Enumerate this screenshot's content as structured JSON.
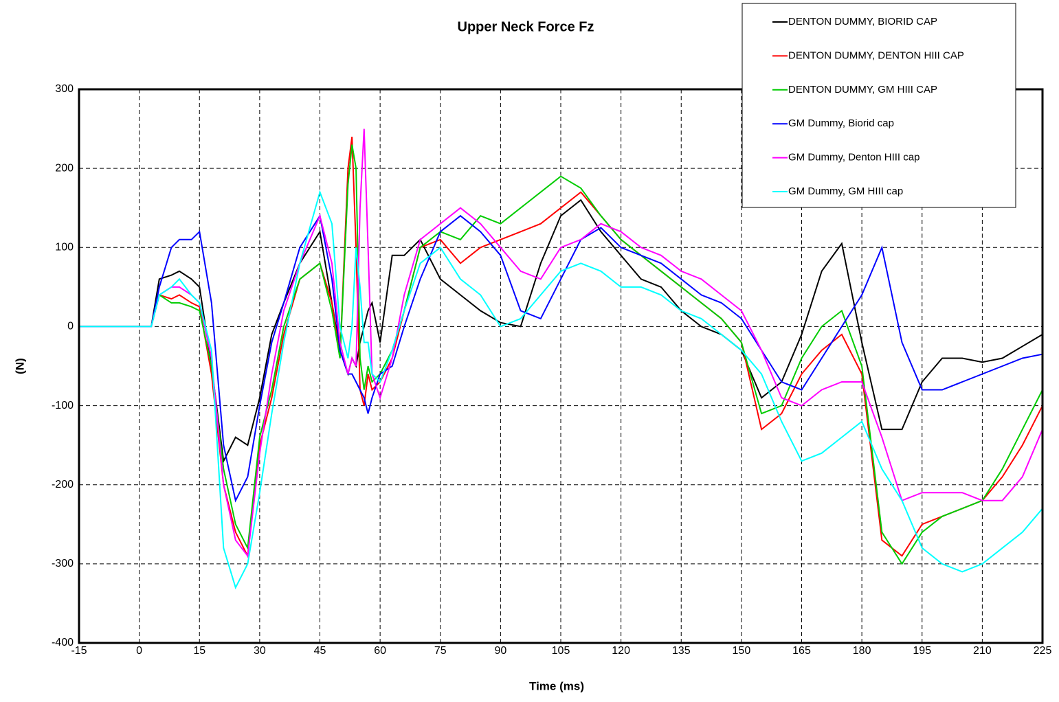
{
  "chart_data": {
    "type": "line",
    "title": "Upper Neck Force Fz",
    "x_label": "Time (ms)",
    "y_label": "(N)",
    "x": [
      -15,
      0,
      3,
      5,
      8,
      10,
      13,
      15,
      18,
      21,
      24,
      27,
      30,
      33,
      36,
      40,
      45,
      48,
      50,
      52,
      53,
      54,
      55,
      56,
      57,
      58,
      60,
      63,
      66,
      70,
      75,
      80,
      85,
      90,
      95,
      100,
      105,
      110,
      115,
      120,
      125,
      130,
      135,
      140,
      145,
      150,
      155,
      160,
      165,
      170,
      175,
      180,
      185,
      190,
      195,
      200,
      205,
      210,
      215,
      220,
      225
    ],
    "series": [
      {
        "name": "DENTON DUMMY, BIORID CAP",
        "color": "#000000",
        "values": [
          0,
          0,
          0,
          60,
          65,
          70,
          60,
          50,
          -50,
          -170,
          -140,
          -150,
          -90,
          -10,
          30,
          80,
          120,
          30,
          -30,
          -60,
          -40,
          -50,
          -20,
          0,
          20,
          30,
          -20,
          90,
          90,
          110,
          60,
          40,
          20,
          5,
          0,
          80,
          140,
          160,
          120,
          90,
          60,
          50,
          20,
          0,
          -10,
          -30,
          -90,
          -70,
          -10,
          70,
          105,
          -20,
          -130,
          -130,
          -70,
          -40,
          -40,
          -45,
          -40,
          -25,
          -10
        ]
      },
      {
        "name": "DENTON DUMMY, DENTON HIII CAP",
        "color": "#ff0000",
        "values": [
          0,
          0,
          0,
          40,
          35,
          40,
          30,
          25,
          -60,
          -200,
          -260,
          -290,
          -150,
          -90,
          -10,
          60,
          80,
          30,
          -40,
          200,
          240,
          100,
          -80,
          -100,
          -60,
          -80,
          -70,
          -40,
          20,
          100,
          110,
          80,
          100,
          110,
          120,
          130,
          150,
          170,
          140,
          110,
          90,
          70,
          50,
          30,
          10,
          -20,
          -130,
          -110,
          -60,
          -30,
          -10,
          -60,
          -270,
          -290,
          -250,
          -240,
          -230,
          -220,
          -190,
          -150,
          -100
        ]
      },
      {
        "name": "DENTON DUMMY, GM HIII CAP",
        "color": "#00cc00",
        "values": [
          0,
          0,
          0,
          40,
          30,
          30,
          25,
          20,
          -50,
          -180,
          -250,
          -280,
          -140,
          -80,
          0,
          60,
          80,
          20,
          -40,
          180,
          230,
          200,
          -40,
          -80,
          -50,
          -70,
          -60,
          -30,
          20,
          100,
          120,
          110,
          140,
          130,
          150,
          170,
          190,
          175,
          140,
          110,
          90,
          70,
          50,
          30,
          10,
          -20,
          -110,
          -100,
          -40,
          0,
          20,
          -50,
          -260,
          -300,
          -260,
          -240,
          -230,
          -220,
          -180,
          -130,
          -80
        ]
      },
      {
        "name": "GM Dummy, Biorid cap",
        "color": "#0000ff",
        "values": [
          0,
          0,
          0,
          50,
          100,
          110,
          110,
          120,
          30,
          -150,
          -220,
          -190,
          -100,
          -20,
          30,
          100,
          140,
          60,
          -30,
          -60,
          -60,
          -70,
          -80,
          -90,
          -110,
          -90,
          -60,
          -50,
          0,
          60,
          120,
          140,
          120,
          90,
          20,
          10,
          60,
          110,
          125,
          100,
          90,
          80,
          60,
          40,
          30,
          10,
          -30,
          -70,
          -80,
          -40,
          0,
          40,
          100,
          -20,
          -80,
          -80,
          -70,
          -60,
          -50,
          -40,
          -35
        ]
      },
      {
        "name": "GM Dummy, Denton HIII cap",
        "color": "#ff00ff",
        "values": [
          0,
          0,
          0,
          40,
          50,
          50,
          40,
          30,
          -40,
          -200,
          -270,
          -290,
          -160,
          -60,
          20,
          80,
          140,
          80,
          -20,
          -60,
          -40,
          -50,
          150,
          250,
          100,
          -60,
          -90,
          -40,
          40,
          110,
          130,
          150,
          130,
          100,
          70,
          60,
          100,
          110,
          130,
          120,
          100,
          90,
          70,
          60,
          40,
          20,
          -30,
          -90,
          -100,
          -80,
          -70,
          -70,
          -140,
          -220,
          -210,
          -210,
          -210,
          -220,
          -220,
          -190,
          -130
        ]
      },
      {
        "name": "GM Dummy, GM HIII cap",
        "color": "#00ffff",
        "values": [
          0,
          0,
          0,
          40,
          50,
          60,
          40,
          30,
          -30,
          -280,
          -330,
          -300,
          -210,
          -110,
          -20,
          80,
          170,
          130,
          0,
          -40,
          0,
          100,
          50,
          -20,
          -20,
          -60,
          -70,
          -30,
          20,
          80,
          100,
          60,
          40,
          0,
          10,
          40,
          70,
          80,
          70,
          50,
          50,
          40,
          20,
          10,
          -10,
          -30,
          -60,
          -120,
          -170,
          -160,
          -140,
          -120,
          -180,
          -220,
          -280,
          -300,
          -310,
          -300,
          -280,
          -260,
          -230
        ]
      }
    ],
    "xlim": [
      -15,
      225
    ],
    "xticks": [
      -15,
      0,
      15,
      30,
      45,
      60,
      75,
      90,
      105,
      120,
      135,
      150,
      165,
      180,
      195,
      210,
      225
    ],
    "ylim": [
      -400,
      300
    ],
    "yticks": [
      -400,
      -300,
      -200,
      -100,
      0,
      100,
      200,
      300
    ],
    "grid": true,
    "legend": "top-right"
  }
}
